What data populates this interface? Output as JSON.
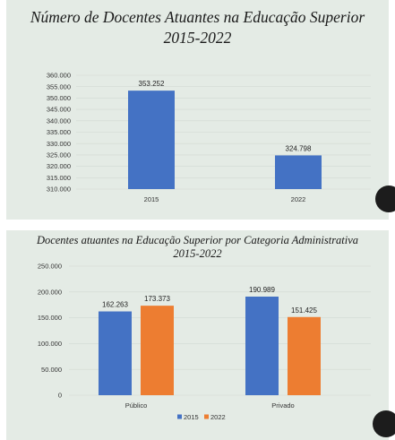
{
  "charts": [
    {
      "title_line1": "Número de Docentes Atuantes na Educação Superior",
      "title_line2": "2015-2022"
    },
    {
      "title_line1": "Docentes  atuantes  na Educação  Superior  por Categoria Administrativa",
      "title_line2": "2015-2022"
    }
  ],
  "chart_data": [
    {
      "type": "bar",
      "categories": [
        "2015",
        "2022"
      ],
      "values": [
        353252,
        324798
      ],
      "value_labels": [
        "353.252",
        "324.798"
      ],
      "ylim": [
        310000,
        360000
      ],
      "yticks": [
        "310.000",
        "315.000",
        "320.000",
        "325.000",
        "330.000",
        "335.000",
        "340.000",
        "345.000",
        "350.000",
        "355.000",
        "360.000"
      ],
      "ytick_values": [
        310000,
        315000,
        320000,
        325000,
        330000,
        335000,
        340000,
        345000,
        350000,
        355000,
        360000
      ],
      "color": "#4472c4",
      "grid": true
    },
    {
      "type": "bar",
      "categories": [
        "Público",
        "Privado"
      ],
      "series": [
        {
          "name": "2015",
          "values": [
            162263,
            190989
          ],
          "value_labels": [
            "162.263",
            "190.989"
          ],
          "color": "#4472c4"
        },
        {
          "name": "2022",
          "values": [
            173373,
            151425
          ],
          "value_labels": [
            "173.373",
            "151.425"
          ],
          "color": "#ed7d31"
        }
      ],
      "ylim": [
        0,
        250000
      ],
      "yticks": [
        "0",
        "50.000",
        "100.000",
        "150.000",
        "200.000",
        "250.000"
      ],
      "ytick_values": [
        0,
        50000,
        100000,
        150000,
        200000,
        250000
      ],
      "legend": "bottom-center",
      "grid": true
    }
  ]
}
